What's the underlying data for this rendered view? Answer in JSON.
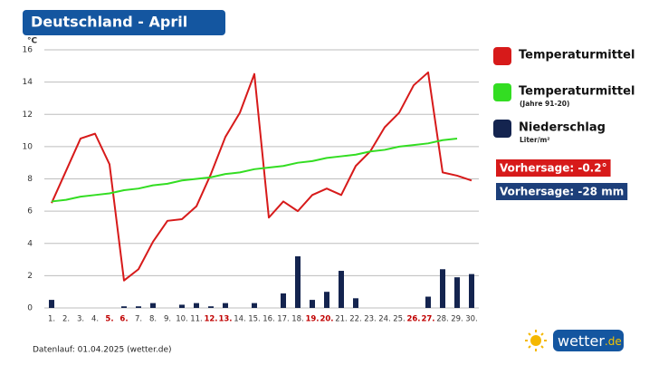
{
  "chart_data": {
    "type": "line-bar",
    "title": "Deutschland - April",
    "y_unit": "°C",
    "categories": [
      "1.",
      "2.",
      "3.",
      "4.",
      "5.",
      "6.",
      "7.",
      "8.",
      "9.",
      "10.",
      "11.",
      "12.",
      "13.",
      "14.",
      "15.",
      "16.",
      "17.",
      "18.",
      "19.",
      "20.",
      "21.",
      "22.",
      "23.",
      "24.",
      "25.",
      "26.",
      "27.",
      "28.",
      "29.",
      "30."
    ],
    "category_colors": [
      "#333",
      "#333",
      "#333",
      "#333",
      "#c00000",
      "#c00000",
      "#333",
      "#333",
      "#333",
      "#333",
      "#333",
      "#c00000",
      "#c00000",
      "#333",
      "#333",
      "#333",
      "#333",
      "#333",
      "#c00000",
      "#c00000",
      "#333",
      "#333",
      "#333",
      "#333",
      "#333",
      "#c00000",
      "#c00000",
      "#333",
      "#333",
      "#333"
    ],
    "ylim": [
      0,
      16
    ],
    "yticks": [
      0,
      2,
      4,
      6,
      8,
      10,
      12,
      14,
      16
    ],
    "grid": true,
    "series": [
      {
        "name": "Temperaturmittel",
        "color": "#d71a1a",
        "kind": "line",
        "values": [
          6.5,
          8.5,
          10.5,
          10.8,
          8.9,
          1.7,
          2.4,
          4.1,
          5.4,
          5.5,
          6.3,
          8.3,
          10.6,
          12.1,
          14.5,
          5.6,
          6.6,
          6.0,
          7.0,
          7.4,
          7.0,
          8.8,
          9.7,
          11.2,
          12.1,
          13.8,
          14.6,
          8.4,
          8.2,
          7.9
        ]
      },
      {
        "name": "Temperaturmittel",
        "sublabel": "(Jahre 91-20)",
        "color": "#33dd22",
        "kind": "line",
        "values": [
          6.6,
          6.7,
          6.9,
          7.0,
          7.1,
          7.3,
          7.4,
          7.6,
          7.7,
          7.9,
          8.0,
          8.1,
          8.3,
          8.4,
          8.6,
          8.7,
          8.8,
          9.0,
          9.1,
          9.3,
          9.4,
          9.5,
          9.7,
          9.8,
          10.0,
          10.1,
          10.2,
          10.4,
          10.5,
          null
        ]
      },
      {
        "name": "Niederschlag",
        "sublabel": "Liter/m²",
        "color": "#14244f",
        "kind": "bar",
        "values": [
          0.5,
          0,
          0,
          0,
          0,
          0.1,
          0.1,
          0.3,
          0,
          0.2,
          0.3,
          0.1,
          0.3,
          0,
          0.3,
          0,
          0.9,
          3.2,
          0.5,
          1.0,
          2.3,
          0.6,
          0,
          0,
          0,
          0,
          0.7,
          2.4,
          1.9,
          2.1
        ]
      }
    ],
    "annotations": [
      {
        "text": "Vorhersage: -0.2°",
        "color": "#d71a1a"
      },
      {
        "text": "Vorhersage: -28 mm",
        "color": "#1d3f7a"
      }
    ],
    "footer": "Datenlauf: 01.04.2025 (wetter.de)",
    "logo_main": "wetter",
    "logo_suffix": ".de"
  }
}
